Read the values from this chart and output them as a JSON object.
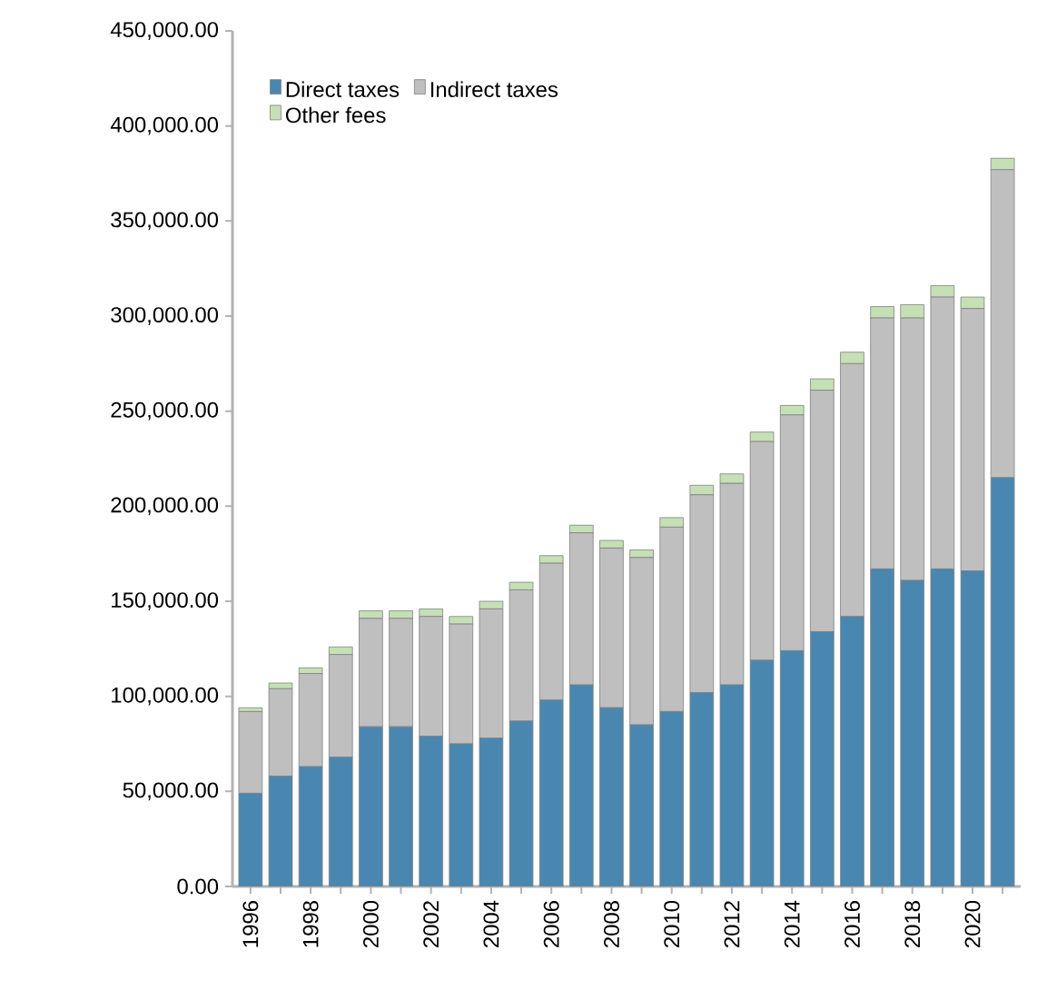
{
  "chart_data": {
    "type": "bar",
    "stacked": true,
    "legend": "top left",
    "categories": [
      "1996",
      null,
      "1998",
      null,
      "2000",
      null,
      "2002",
      null,
      "2004",
      null,
      "2006",
      null,
      "2008",
      null,
      "2010",
      null,
      "2012",
      null,
      "2014",
      null,
      "2016",
      null,
      "2018",
      null,
      "2020",
      null
    ],
    "series": [
      {
        "name": "Direct taxes",
        "color": "#4a87b0",
        "values": [
          49000,
          58000,
          63000,
          68000,
          84000,
          84000,
          79000,
          75000,
          78000,
          87000,
          98000,
          106000,
          94000,
          85000,
          92000,
          102000,
          106000,
          119000,
          124000,
          134000,
          142000,
          167000,
          161000,
          167000,
          166000,
          215000
        ]
      },
      {
        "name": "Indirect taxes",
        "color": "#bfbfbf",
        "values": [
          43000,
          46000,
          49000,
          54000,
          57000,
          57000,
          63000,
          63000,
          68000,
          69000,
          72000,
          80000,
          84000,
          88000,
          97000,
          104000,
          106000,
          115000,
          124000,
          127000,
          133000,
          132000,
          138000,
          143000,
          138000,
          162000
        ]
      },
      {
        "name": "Other fees",
        "color": "#c5e0b4",
        "values": [
          2000,
          3000,
          3000,
          4000,
          4000,
          4000,
          4000,
          4000,
          4000,
          4000,
          4000,
          4000,
          4000,
          4000,
          5000,
          5000,
          5000,
          5000,
          5000,
          6000,
          6000,
          6000,
          7000,
          6000,
          6000,
          6000
        ]
      }
    ],
    "ylim": [
      0,
      450000
    ],
    "yticks": [
      {
        "value": 0,
        "label": "0.00"
      },
      {
        "value": 50000,
        "label": "50,000.00"
      },
      {
        "value": 100000,
        "label": "100,000.00"
      },
      {
        "value": 150000,
        "label": "150,000.00"
      },
      {
        "value": 200000,
        "label": "200,000.00"
      },
      {
        "value": 250000,
        "label": "250,000.00"
      },
      {
        "value": 300000,
        "label": "300,000.00"
      },
      {
        "value": 350000,
        "label": "350,000.00"
      },
      {
        "value": 400000,
        "label": "400,000.00"
      },
      {
        "value": 450000,
        "label": "450,000.00"
      }
    ]
  }
}
